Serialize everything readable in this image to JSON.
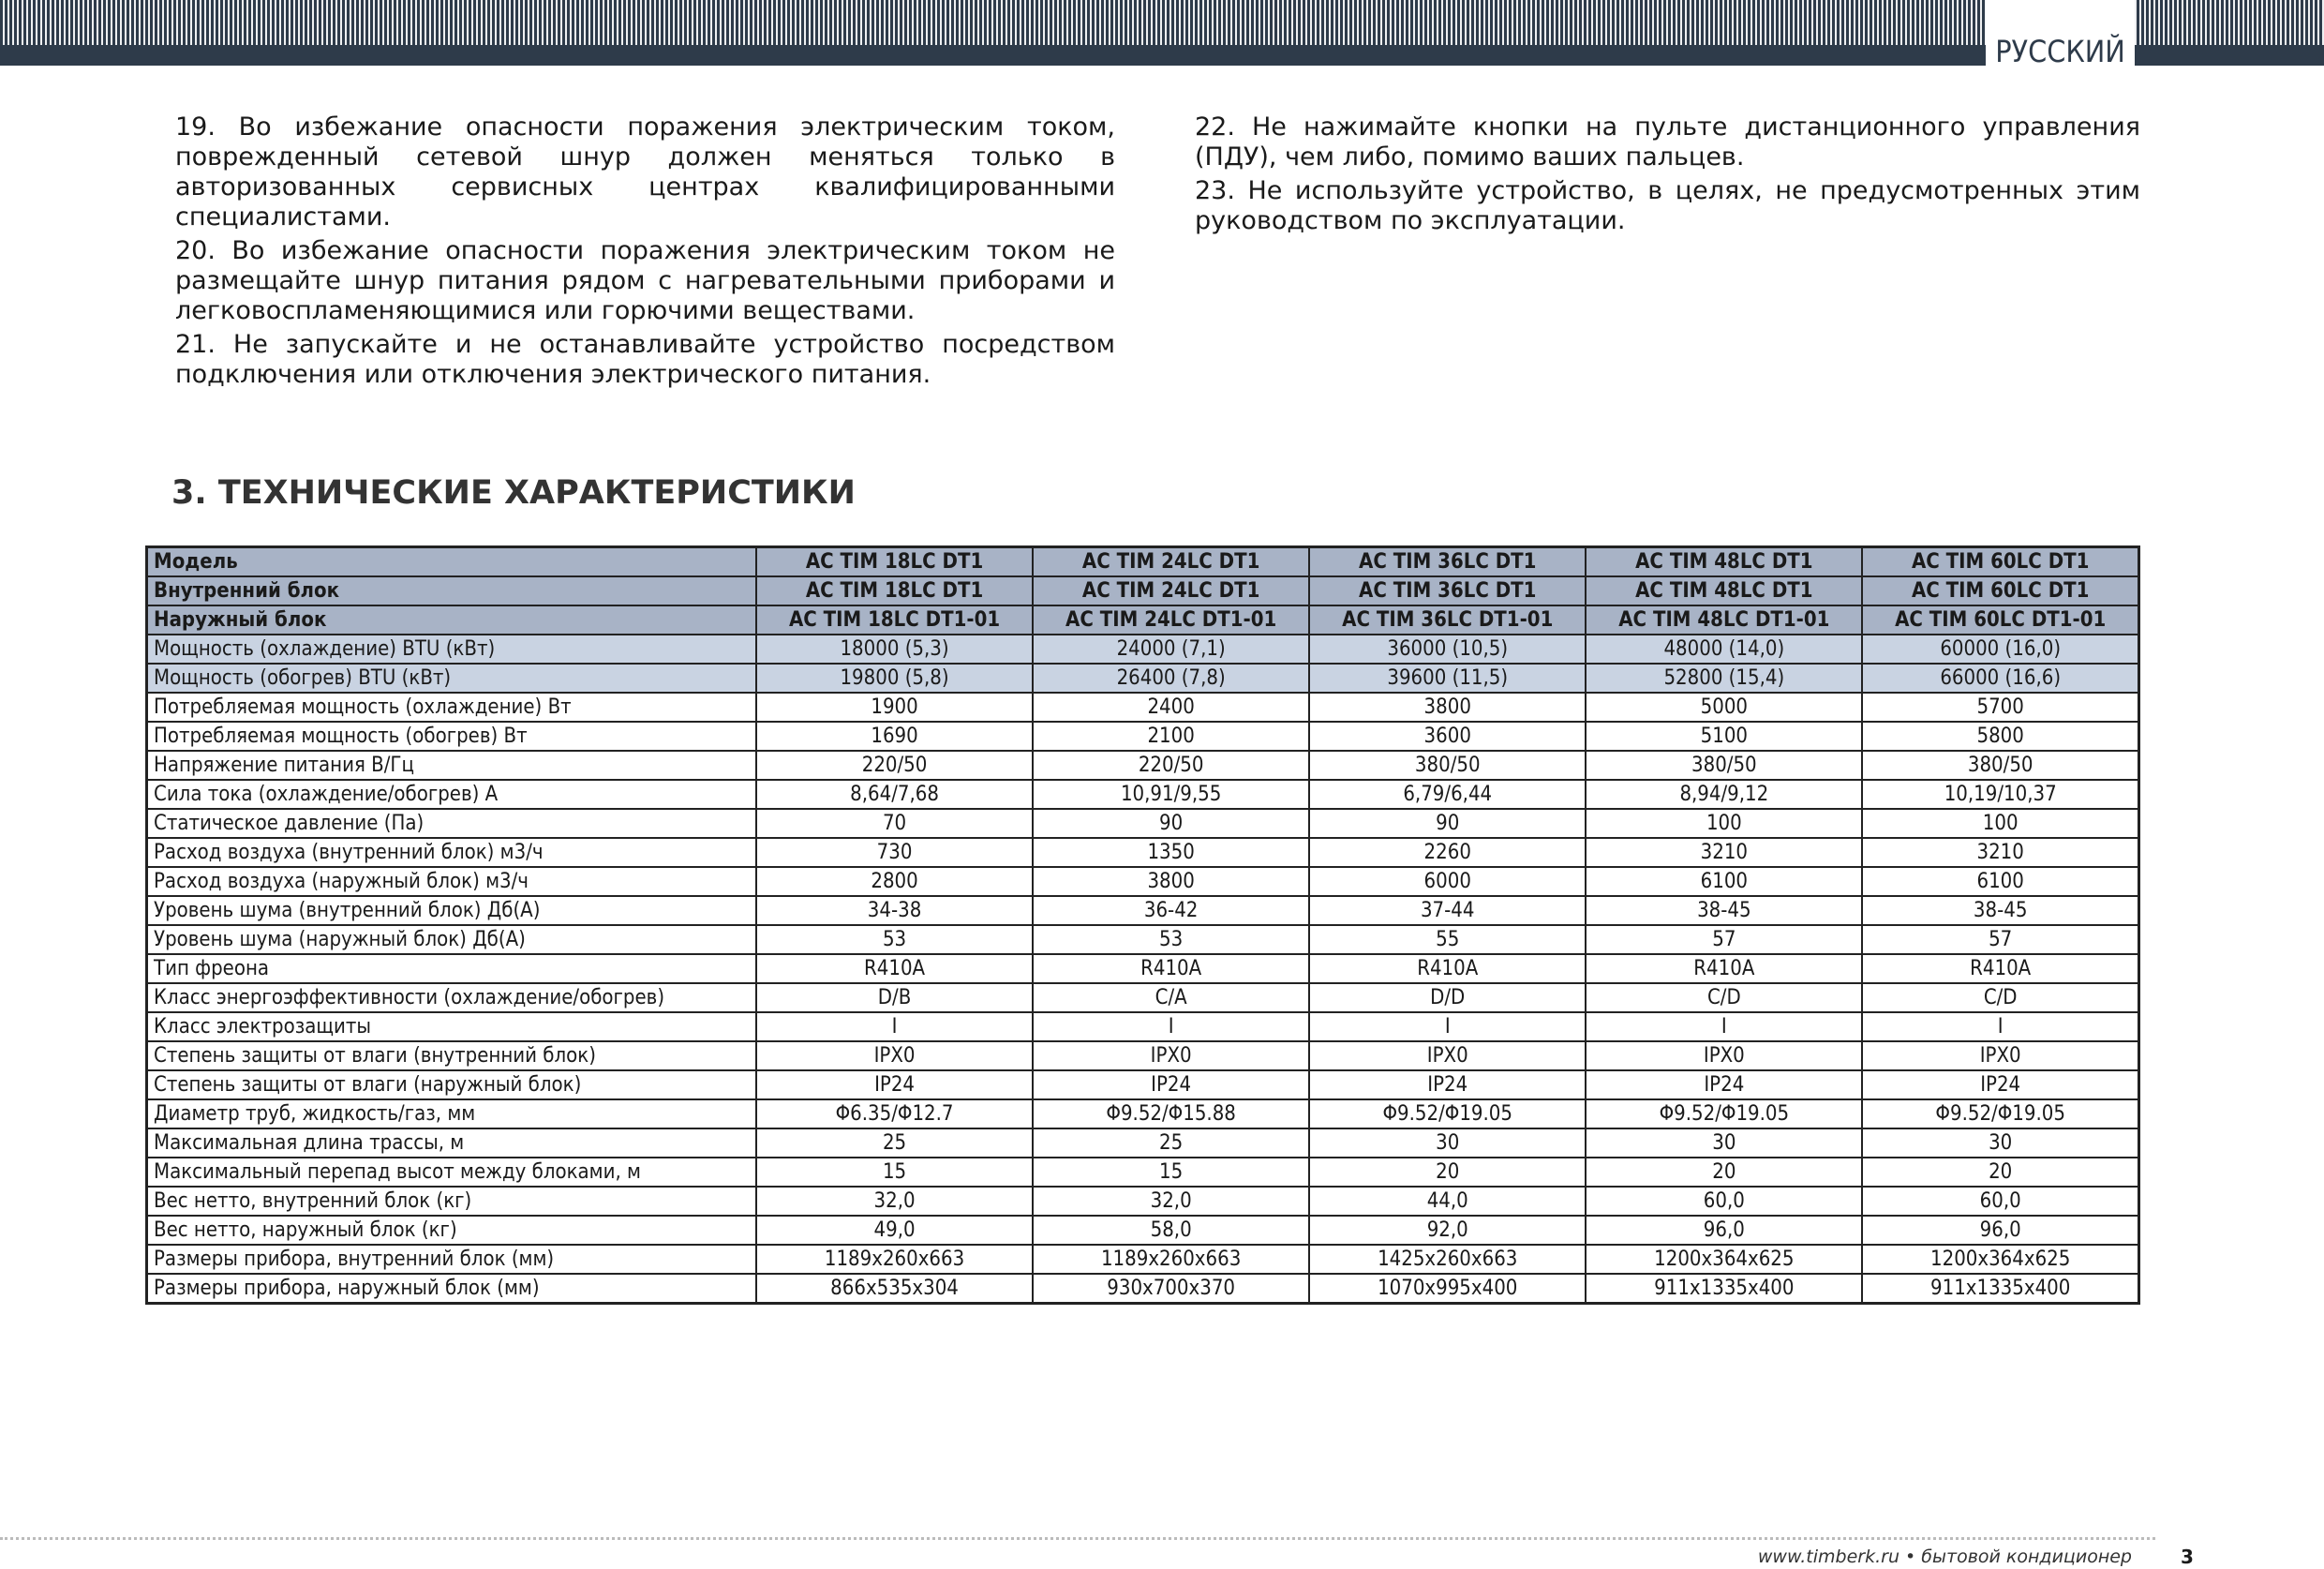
{
  "header": {
    "language": "РУССКИЙ"
  },
  "paragraphs": {
    "left": [
      "19. Во избежание опасности поражения электрическим током, поврежденный сетевой шнур должен меняться только в авторизованных сервисных центрах квалифицированными специалистами.",
      "20. Во избежание опасности поражения электрическим током не размещайте шнур питания рядом с нагревательными приборами и легковоспламеняющимися или горючими веществами.",
      "21. Не запускайте и не останавливайте устройство посредством подключения или отключения электрического питания."
    ],
    "right": [
      "22. Не нажимайте кнопки на пульте дистанционного управления (ПДУ), чем либо, помимо ваших пальцев.",
      "23. Не используйте устройство, в целях, не предусмотренных этим руководством по эксплуатации."
    ]
  },
  "section": {
    "title": "3. ТЕХНИЧЕСКИЕ ХАРАКТЕРИСТИКИ"
  },
  "table": {
    "rows": [
      [
        "Модель",
        "AC TIM 18LC DT1",
        "AC TIM 24LC DT1",
        "AC TIM 36LC DT1",
        "AC TIM 48LC DT1",
        "AC TIM 60LC DT1"
      ],
      [
        "Внутренний блок",
        "AC TIM 18LC DT1",
        "AC TIM 24LC DT1",
        "AC TIM 36LC DT1",
        "AC TIM 48LC DT1",
        "AC TIM 60LC DT1"
      ],
      [
        "Наружный блок",
        "AC TIM 18LC DT1-01",
        "AC TIM 24LC DT1-01",
        "AC TIM 36LC DT1-01",
        "AC TIM 48LC DT1-01",
        "AC TIM 60LC DT1-01"
      ],
      [
        "Мощность (охлаждение) BTU (кВт)",
        "18000 (5,3)",
        "24000 (7,1)",
        "36000 (10,5)",
        "48000 (14,0)",
        "60000 (16,0)"
      ],
      [
        "Мощность (обогрев) BTU (кВт)",
        "19800 (5,8)",
        "26400 (7,8)",
        "39600 (11,5)",
        "52800 (15,4)",
        "66000 (16,6)"
      ],
      [
        "Потребляемая мощность (охлаждение) Вт",
        "1900",
        "2400",
        "3800",
        "5000",
        "5700"
      ],
      [
        "Потребляемая мощность (обогрев) Вт",
        "1690",
        "2100",
        "3600",
        "5100",
        "5800"
      ],
      [
        "Напряжение питания В/Гц",
        "220/50",
        "220/50",
        "380/50",
        "380/50",
        "380/50"
      ],
      [
        "Сила тока (охлаждение/обогрев) А",
        "8,64/7,68",
        "10,91/9,55",
        "6,79/6,44",
        "8,94/9,12",
        "10,19/10,37"
      ],
      [
        "Статическое давление (Па)",
        "70",
        "90",
        "90",
        "100",
        "100"
      ],
      [
        "Расход воздуха (внутренний блок) м3/ч",
        "730",
        "1350",
        "2260",
        "3210",
        "3210"
      ],
      [
        "Расход воздуха (наружный блок) м3/ч",
        "2800",
        "3800",
        "6000",
        "6100",
        "6100"
      ],
      [
        "Уровень шума (внутренний блок) Дб(А)",
        "34-38",
        "36-42",
        "37-44",
        "38-45",
        "38-45"
      ],
      [
        "Уровень шума (наружный блок) Дб(А)",
        "53",
        "53",
        "55",
        "57",
        "57"
      ],
      [
        "Тип фреона",
        "R410A",
        "R410A",
        "R410A",
        "R410A",
        "R410A"
      ],
      [
        "Класс энергоэффективности (охлаждение/обогрев)",
        "D/B",
        "C/A",
        "D/D",
        "C/D",
        "C/D"
      ],
      [
        "Класс электрозащиты",
        "I",
        "I",
        "I",
        "I",
        "I"
      ],
      [
        "Степень защиты от влаги (внутренний блок)",
        "IPX0",
        "IPX0",
        "IPX0",
        "IPX0",
        "IPX0"
      ],
      [
        "Степень защиты от влаги (наружный блок)",
        "IP24",
        "IP24",
        "IP24",
        "IP24",
        "IP24"
      ],
      [
        "Диаметр труб, жидкость/газ, мм",
        "Φ6.35/Φ12.7",
        "Φ9.52/Φ15.88",
        "Φ9.52/Φ19.05",
        "Φ9.52/Φ19.05",
        "Φ9.52/Φ19.05"
      ],
      [
        "Максимальная длина трассы, м",
        "25",
        "25",
        "30",
        "30",
        "30"
      ],
      [
        "Максимальный перепад высот между блоками, м",
        "15",
        "15",
        "20",
        "20",
        "20"
      ],
      [
        "Вес нетто, внутренний блок (кг)",
        "32,0",
        "32,0",
        "44,0",
        "60,0",
        "60,0"
      ],
      [
        "Вес нетто, наружный блок (кг)",
        "49,0",
        "58,0",
        "92,0",
        "96,0",
        "96,0"
      ],
      [
        "Размеры прибора, внутренний блок (мм)",
        "1189x260x663",
        "1189x260x663",
        "1425x260x663",
        "1200x364x625",
        "1200x364x625"
      ],
      [
        "Размеры прибора, наружный блок (мм)",
        "866x535x304",
        "930x700x370",
        "1070x995x400",
        "911x1335x400",
        "911x1335x400"
      ]
    ]
  },
  "footer": {
    "site": "www.timberk.ru • бытовой кондиционер",
    "page": "3"
  }
}
